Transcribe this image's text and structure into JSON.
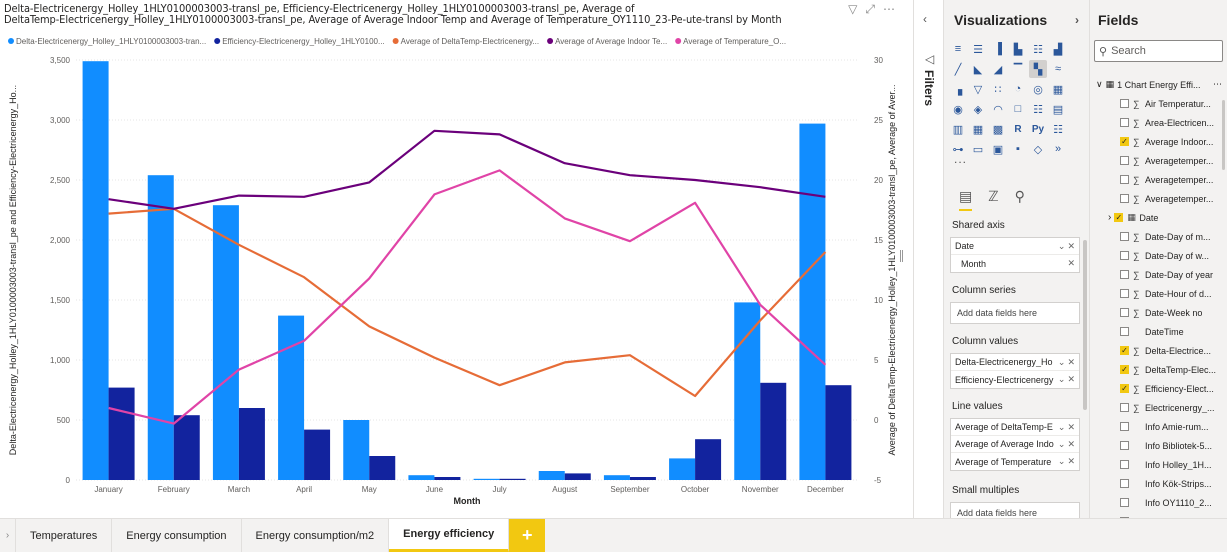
{
  "chart_title": "Delta-Electricenergy_Holley_1HLY0100003003-transl_pe, Efficiency-Electricenergy_Holley_1HLY0100003003-transl_pe, Average of\nDeltaTemp-Electricenergy_Holley_1HLY0100003003-transl_pe, Average of Average Indoor Temp and Average of Temperature_OY1110_23-Pe-ute-transl by Month",
  "chart_data": {
    "type": "bar",
    "categories": [
      "January",
      "February",
      "March",
      "April",
      "May",
      "June",
      "July",
      "August",
      "September",
      "October",
      "November",
      "December"
    ],
    "series": [
      {
        "name": "Delta-Electricenergy_Holley_1HLY0100003003-tran...",
        "kind": "bar",
        "axis": "left",
        "color": "#118dff",
        "values": [
          3490,
          2540,
          2290,
          1370,
          500,
          40,
          10,
          75,
          40,
          180,
          1480,
          2970
        ]
      },
      {
        "name": "Efficiency-Electricenergy_Holley_1HLY0100...",
        "kind": "bar",
        "axis": "left",
        "color": "#12239e",
        "values": [
          770,
          540,
          600,
          420,
          200,
          25,
          10,
          55,
          25,
          340,
          810,
          790
        ]
      },
      {
        "name": "Average of DeltaTemp-Electricenergy...",
        "kind": "line",
        "axis": "right",
        "color": "#e66c37",
        "values": [
          17.2,
          17.6,
          14.6,
          11.9,
          7.8,
          5.2,
          2.9,
          4.8,
          5.4,
          2.0,
          8.3,
          14.0
        ]
      },
      {
        "name": "Average of Average Indoor Te...",
        "kind": "line",
        "axis": "right",
        "color": "#6b007b",
        "values": [
          18.4,
          17.6,
          18.7,
          18.6,
          19.8,
          24.1,
          23.8,
          21.4,
          20.4,
          20.0,
          19.4,
          18.6
        ]
      },
      {
        "name": "Average of Temperature_O...",
        "kind": "line",
        "axis": "right",
        "color": "#e044a7",
        "values": [
          1.0,
          -0.3,
          4.2,
          6.6,
          11.8,
          18.8,
          20.8,
          16.8,
          14.9,
          18.1,
          9.6,
          4.6
        ]
      }
    ],
    "ylim_left": [
      0,
      3500
    ],
    "ylim_right": [
      -5,
      30
    ],
    "yticks_left": [
      "0",
      "500",
      "1,000",
      "1,500",
      "2,000",
      "2,500",
      "3,000",
      "3,500"
    ],
    "yticks_right": [
      "-5",
      "0",
      "5",
      "10",
      "15",
      "20",
      "25",
      "30"
    ],
    "xlabel": "Month",
    "ylabel_left": "Delta-Electricenergy_Holley_1HLY0100003003-transl_pe and Efficiency-Electricenergy_Ho...",
    "ylabel_right": "Average of DeltaTemp-Electricenergy_Holley_1HLY0100003003-transl_pe, Average of Aver...",
    "legend_position": "top",
    "grid": true
  },
  "tabs": [
    "Temperatures",
    "Energy consumption",
    "Energy consumption/m2",
    "Energy efficiency"
  ],
  "active_tab": "Energy efficiency",
  "add_tab": "+",
  "filters": {
    "label": "Filters"
  },
  "visualizations": {
    "title": "Visualizations",
    "icons": [
      "stacked-bar",
      "clustered-bar",
      "stacked-column-small",
      "clustered-column",
      "100-bar",
      "100-column",
      "line-chart",
      "area-chart",
      "stacked-area",
      "line-stacked-column",
      "line-clustered-column",
      "ribbon-chart",
      "waterfall",
      "funnel",
      "scatter",
      "pie",
      "donut",
      "treemap",
      "map",
      "filled-map",
      "gauge",
      "card",
      "multi-row-card",
      "kpi",
      "slicer",
      "table",
      "matrix",
      "r-visual",
      "python-visual",
      "key-influencers",
      "decomposition-tree",
      "qa",
      "smart-narrative",
      "paginated",
      "power-apps",
      "power-automate"
    ],
    "more": "...",
    "shared_axis_label": "Shared axis",
    "shared_axis_fields": [
      "Date",
      "Month"
    ],
    "column_series_label": "Column series",
    "column_values_label": "Column values",
    "column_values_fields": [
      "Delta-Electricenergy_Ho",
      "Efficiency-Electricenergy"
    ],
    "line_values_label": "Line values",
    "line_values_fields": [
      "Average of DeltaTemp-E",
      "Average of Average Indo",
      "Average of Temperature"
    ],
    "small_multiples_label": "Small multiples",
    "add_placeholder": "Add data fields here"
  },
  "fields": {
    "title": "Fields",
    "search_placeholder": "Search",
    "table_name": "1 Chart Energy Effi...",
    "items": [
      {
        "label": "Air Temperatur...",
        "checked": false,
        "sigma": true
      },
      {
        "label": "Area-Electricen...",
        "checked": false,
        "sigma": true
      },
      {
        "label": "Average Indoor...",
        "checked": true,
        "sigma": true
      },
      {
        "label": "Averagetemper...",
        "checked": false,
        "sigma": true
      },
      {
        "label": "Averagetemper...",
        "checked": false,
        "sigma": true
      },
      {
        "label": "Averagetemper...",
        "checked": false,
        "sigma": true
      },
      {
        "label": "Date",
        "checked": true,
        "sigma": false,
        "is_date": true
      },
      {
        "label": "Date-Day of m...",
        "checked": false,
        "sigma": true
      },
      {
        "label": "Date-Day of w...",
        "checked": false,
        "sigma": true
      },
      {
        "label": "Date-Day of year",
        "checked": false,
        "sigma": true
      },
      {
        "label": "Date-Hour of d...",
        "checked": false,
        "sigma": true
      },
      {
        "label": "Date-Week no",
        "checked": false,
        "sigma": true
      },
      {
        "label": "DateTime",
        "checked": false,
        "sigma": false
      },
      {
        "label": "Delta-Electrice...",
        "checked": true,
        "sigma": true
      },
      {
        "label": "DeltaTemp-Elec...",
        "checked": true,
        "sigma": true
      },
      {
        "label": "Efficiency-Elect...",
        "checked": true,
        "sigma": true
      },
      {
        "label": "Electricenergy_...",
        "checked": false,
        "sigma": true
      },
      {
        "label": "Info Amie-rum...",
        "checked": false,
        "sigma": false
      },
      {
        "label": "Info Bibliotek-5...",
        "checked": false,
        "sigma": false
      },
      {
        "label": "Info Holley_1H...",
        "checked": false,
        "sigma": false
      },
      {
        "label": "Info Kök-Strips...",
        "checked": false,
        "sigma": false
      },
      {
        "label": "Info OY1110_2...",
        "checked": false,
        "sigma": false
      },
      {
        "label": "Info VOC_CO2_...",
        "checked": false,
        "sigma": false
      }
    ]
  }
}
